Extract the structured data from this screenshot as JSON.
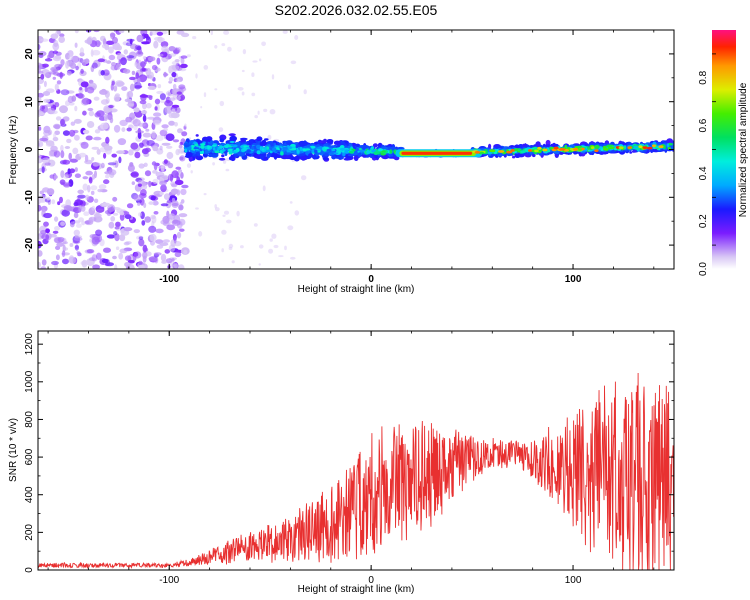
{
  "title": "S202.2026.032.02.55.E05",
  "chart_data": [
    {
      "type": "heatmap",
      "name": "spectrogram",
      "xlabel": "Height of straight line (km)",
      "ylabel": "Frequency (Hz)",
      "xlim": [
        -165,
        150
      ],
      "ylim": [
        -25,
        25
      ],
      "xticks": [
        -100,
        0,
        100
      ],
      "yticks": [
        -20,
        -10,
        0,
        10,
        20
      ],
      "colorbar": {
        "label": "Normalized spectral amplitude",
        "range": [
          0,
          1
        ],
        "ticks": [
          0.0,
          0.2,
          0.4,
          0.6,
          0.8
        ]
      },
      "regions": [
        {
          "x": [
            -165,
            -92
          ],
          "frequency_spread_hz": [
            -25,
            25
          ],
          "amplitude": "low (noise)"
        },
        {
          "x": [
            -92,
            -10
          ],
          "frequency_spread_hz": [
            -5,
            5
          ],
          "amplitude": "medium"
        },
        {
          "x": [
            -10,
            15
          ],
          "frequency_spread_hz": [
            -3,
            3
          ],
          "amplitude": "medium-high"
        },
        {
          "x": [
            15,
            50
          ],
          "frequency_spread_hz": [
            -1,
            0
          ],
          "amplitude": "high (~1.0)"
        },
        {
          "x": [
            50,
            150
          ],
          "frequency_spread_hz": [
            -3,
            3
          ],
          "amplitude": "medium-high"
        }
      ]
    },
    {
      "type": "line",
      "name": "snr",
      "xlabel": "Height of straight line (km)",
      "ylabel": "SNR (10 * v/v)",
      "xlim": [
        -165,
        150
      ],
      "ylim": [
        0,
        1270
      ],
      "xticks": [
        -100,
        0,
        100
      ],
      "yticks": [
        0,
        200,
        400,
        600,
        800,
        1000,
        1200
      ],
      "series": [
        {
          "name": "SNR",
          "color": "#e83030",
          "envelope_x": [
            -165,
            -100,
            -90,
            -80,
            -60,
            -40,
            -20,
            -10,
            0,
            10,
            20,
            30,
            40,
            50,
            60,
            70,
            80,
            90,
            100,
            110,
            120,
            130,
            140,
            150
          ],
          "envelope_mean": [
            25,
            25,
            40,
            70,
            120,
            170,
            250,
            320,
            400,
            450,
            480,
            520,
            560,
            600,
            610,
            620,
            600,
            560,
            520,
            520,
            530,
            480,
            420,
            450
          ],
          "envelope_spread": [
            12,
            12,
            20,
            40,
            80,
            120,
            200,
            260,
            320,
            330,
            300,
            260,
            200,
            120,
            80,
            70,
            100,
            200,
            320,
            420,
            520,
            560,
            600,
            500
          ]
        }
      ]
    }
  ]
}
